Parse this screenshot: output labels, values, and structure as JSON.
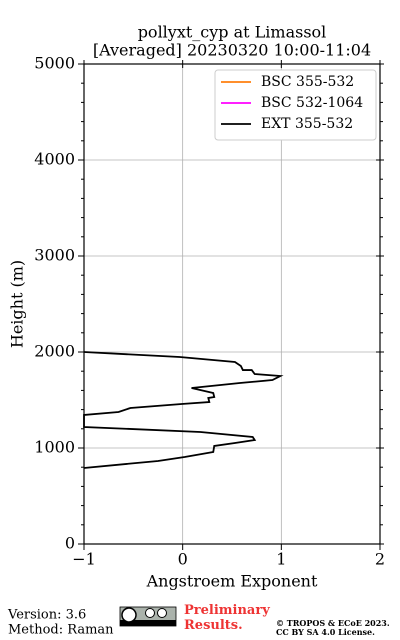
{
  "chart_data": {
    "type": "line",
    "title": "pollyxt_cyp at Limassol",
    "subtitle": "[Averaged] 20230320 10:00-11:04",
    "x_label": "Angstroem Exponent",
    "y_label": "Height (m)",
    "y": [
      2000,
      1948,
      1896,
      1854,
      1812,
      1812,
      1771,
      1750,
      1708,
      1677,
      1625,
      1573,
      1531,
      1521,
      1479,
      1458,
      1417,
      1375,
      1344,
      1219,
      1167,
      1115,
      1083,
      1052,
      1021,
      958,
      906,
      865,
      792
    ],
    "series": [
      {
        "name": "BSC 355-532",
        "color": "#ff7f0e",
        "values": [
          null,
          null,
          null,
          null,
          null,
          null,
          null,
          null,
          null,
          null,
          null,
          null,
          null,
          null,
          null,
          null,
          null,
          null,
          null,
          null,
          null,
          null,
          null,
          null,
          null,
          null,
          null,
          null,
          null
        ]
      },
      {
        "name": "BSC 532-1064",
        "color": "#ff00ff",
        "values": [
          null,
          null,
          null,
          null,
          null,
          null,
          null,
          null,
          null,
          null,
          null,
          null,
          null,
          null,
          null,
          null,
          null,
          null,
          null,
          null,
          null,
          null,
          null,
          null,
          null,
          null,
          null,
          null,
          null
        ]
      },
      {
        "name": "EXT 355-532",
        "color": "#000000",
        "values": [
          -1,
          -0.03,
          0.53,
          0.59,
          0.61,
          0.7,
          0.73,
          0.99,
          0.91,
          0.58,
          0.09,
          0.31,
          0.32,
          0.26,
          0.27,
          -0.01,
          -0.53,
          -0.65,
          -1,
          -1,
          0.18,
          0.71,
          0.73,
          0.53,
          0.32,
          0.31,
          0.02,
          -0.25,
          -1
        ]
      }
    ],
    "xlim": [
      -1,
      2
    ],
    "xticks": [
      {
        "value": -1,
        "label": "−1"
      },
      0,
      1,
      2
    ],
    "ylim": [
      0,
      5000
    ],
    "yticks": [
      0,
      1000,
      2000,
      3000,
      4000,
      5000
    ],
    "yminorticks": [
      200,
      400,
      600,
      800,
      1200,
      1400,
      1600,
      1800,
      2200,
      2400,
      2600,
      2800,
      3200,
      3400,
      3600,
      3800,
      4200,
      4400,
      4600,
      4800
    ],
    "grid": true,
    "legend": "upper right"
  },
  "footer": {
    "version": "Version: 3.6",
    "method": "Method: Raman",
    "notice": "Preliminary Results.",
    "copyright": "© TROPOS & ECoE 2023.",
    "license": "CC BY SA 4.0 License."
  }
}
